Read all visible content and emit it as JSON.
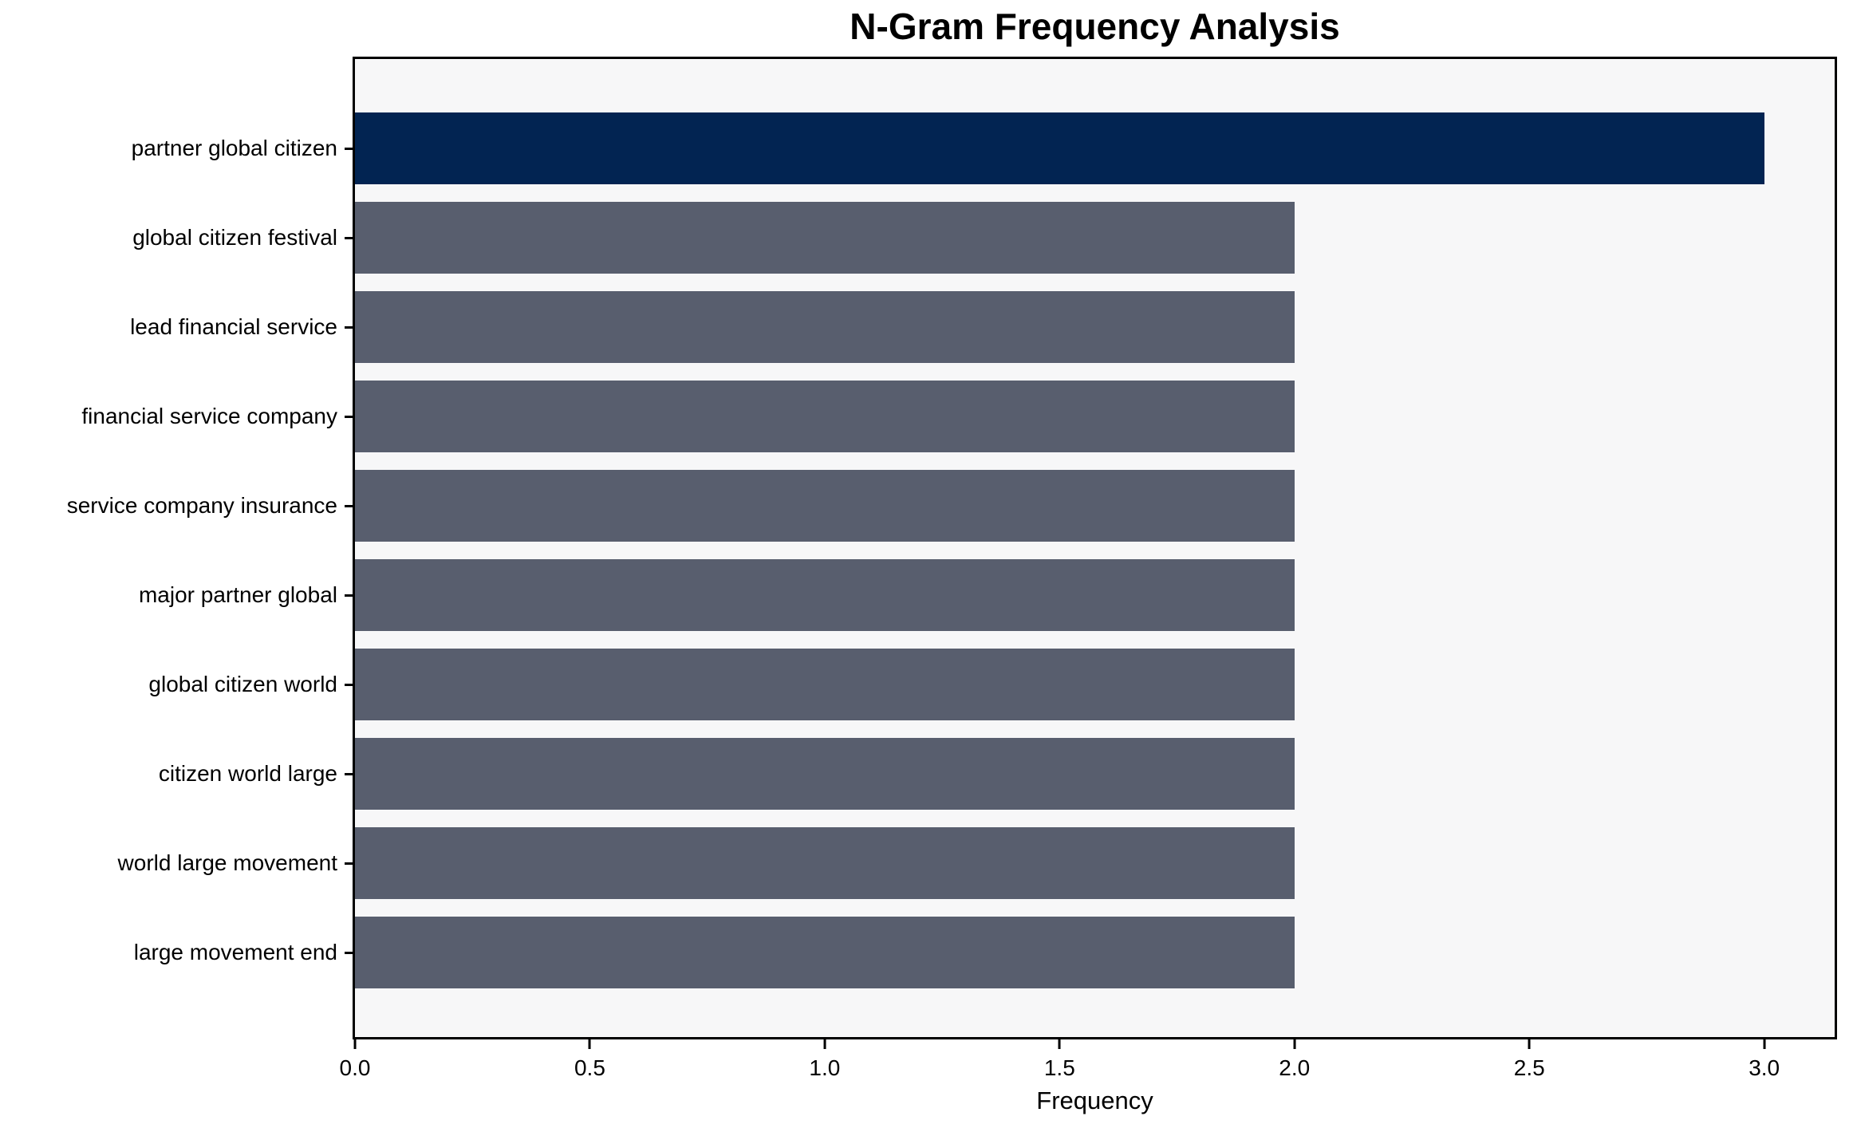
{
  "chart_data": {
    "type": "bar",
    "orientation": "horizontal",
    "title": "N-Gram Frequency Analysis",
    "xlabel": "Frequency",
    "ylabel": "",
    "categories": [
      "partner global citizen",
      "global citizen festival",
      "lead financial service",
      "financial service company",
      "service company insurance",
      "major partner global",
      "global citizen world",
      "citizen world large",
      "world large movement",
      "large movement end"
    ],
    "values": [
      3,
      2,
      2,
      2,
      2,
      2,
      2,
      2,
      2,
      2
    ],
    "bar_colors": [
      "#022452",
      "#585e6e",
      "#585e6e",
      "#585e6e",
      "#585e6e",
      "#585e6e",
      "#585e6e",
      "#585e6e",
      "#585e6e",
      "#585e6e"
    ],
    "xlim": [
      0,
      3.15
    ],
    "xticks": [
      0.0,
      0.5,
      1.0,
      1.5,
      2.0,
      2.5,
      3.0
    ],
    "xtick_labels": [
      "0.0",
      "0.5",
      "1.0",
      "1.5",
      "2.0",
      "2.5",
      "3.0"
    ],
    "grid": false,
    "legend": null,
    "bar_height_frac": 0.8,
    "colors": {
      "highlight_bar": "#022452",
      "default_bar": "#585e6e",
      "plot_background": "#f7f7f8",
      "figure_background": "#ffffff",
      "spine": "#000000",
      "text": "#000000"
    }
  }
}
